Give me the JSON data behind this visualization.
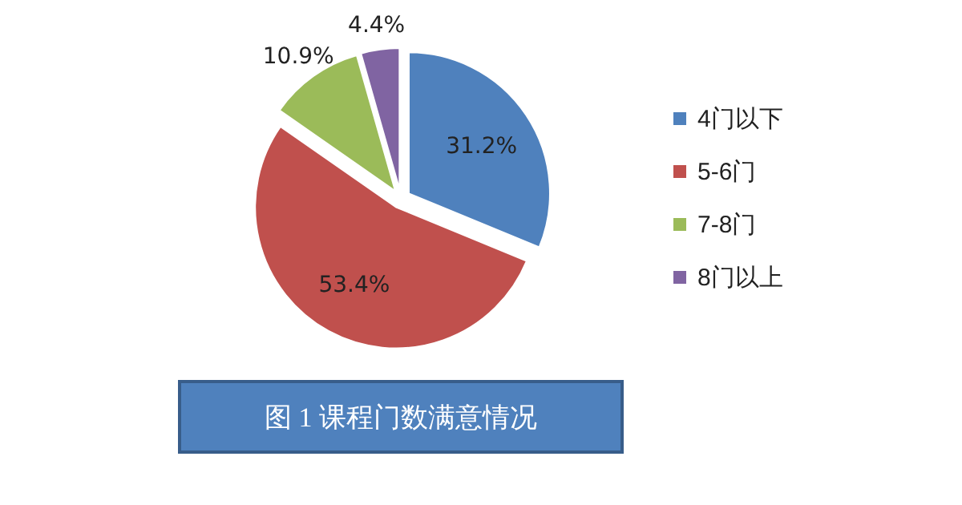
{
  "chart_data": {
    "type": "pie",
    "title": "图 1  课程门数满意情况",
    "categories": [
      "4门以下",
      "5-6门",
      "7-8门",
      "8门以上"
    ],
    "values": [
      31.2,
      53.4,
      10.9,
      4.4
    ],
    "colors": [
      "#4f81bd",
      "#c0504d",
      "#9bbb59",
      "#8064a2"
    ],
    "value_labels": [
      "31.2%",
      "53.4%",
      "10.9%",
      "4.4%"
    ],
    "legend": "right"
  }
}
